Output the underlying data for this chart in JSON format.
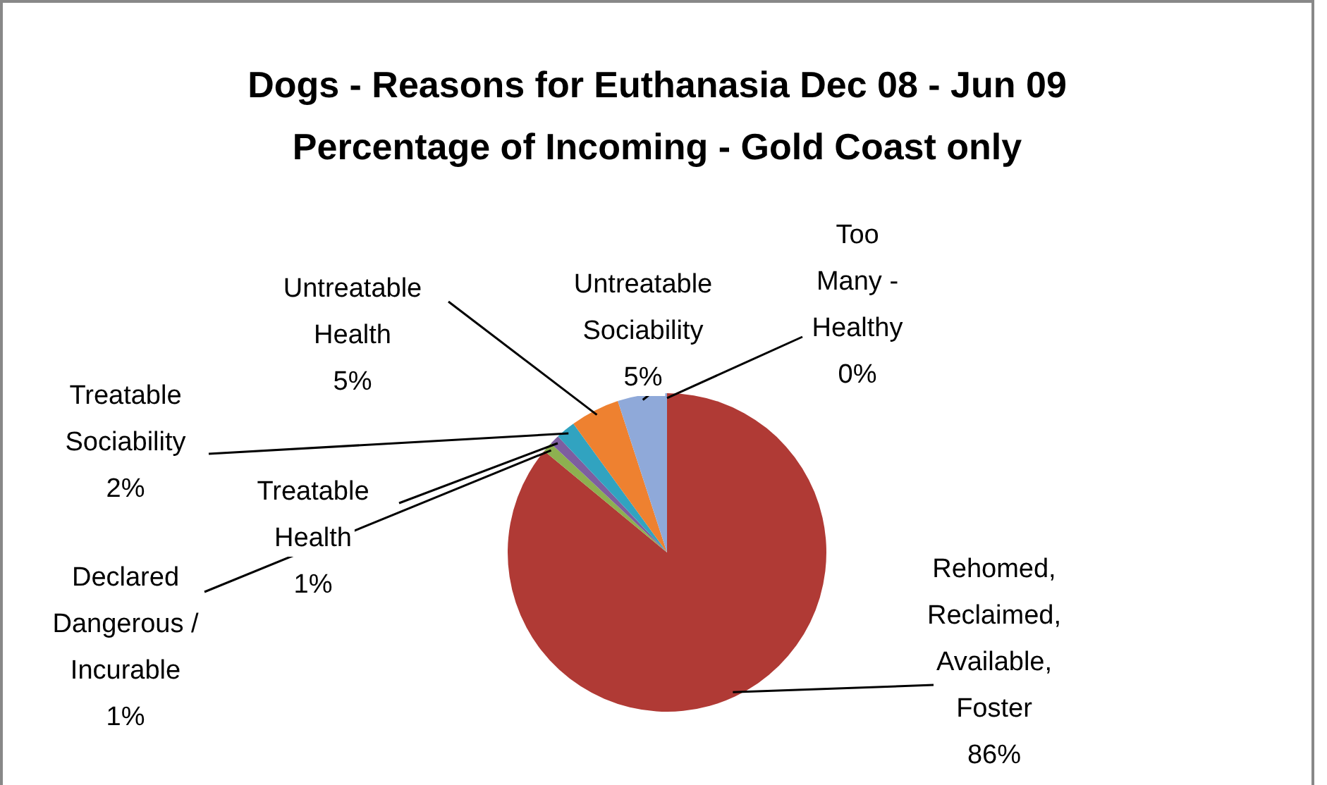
{
  "chart_data": {
    "type": "pie",
    "title": "Dogs - Reasons for Euthanasia  Dec 08 - Jun 09\nPercentage of Incoming - Gold Coast only",
    "categories": [
      "Too Many - Healthy",
      "Rehomed, Reclaimed, Available, Foster",
      "Declared Dangerous / Incurable",
      "Treatable Health",
      "Treatable Sociability",
      "Untreatable Health",
      "Untreatable Sociability"
    ],
    "values": [
      0,
      86,
      1,
      1,
      2,
      5,
      5
    ],
    "value_labels": [
      "0%",
      "86%",
      "1%",
      "1%",
      "2%",
      "5%",
      "5%"
    ],
    "colors": [
      "#4f81bd",
      "#b03a35",
      "#8db050",
      "#7d5ea0",
      "#31a3c0",
      "#ee8130",
      "#8fa9d9"
    ],
    "legend": false
  }
}
